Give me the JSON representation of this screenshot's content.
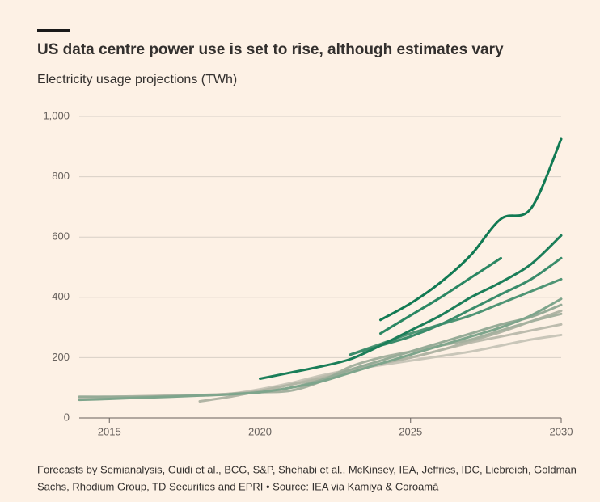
{
  "chart_data": {
    "type": "line",
    "title": "US data centre power use is set to rise, although estimates vary",
    "subtitle": "Electricity usage projections (TWh)",
    "footnote": [
      "Forecasts by Semianalysis, Guidi et al., BCG, S&P, Shehabi et al., McKinsey, IEA, Jeffries, IDC, Liebreich, Goldman",
      "Sachs, Rhodium Group, TD Securities and EPRI • Source: IEA via Kamiya & Coroamă"
    ],
    "x": [
      2014,
      2015,
      2016,
      2017,
      2018,
      2019,
      2020,
      2021,
      2022,
      2023,
      2024,
      2025,
      2026,
      2027,
      2028,
      2029,
      2030
    ],
    "xlim": [
      2014,
      2030
    ],
    "xticks": [
      2015,
      2020,
      2025,
      2030
    ],
    "ylim": [
      0,
      1000
    ],
    "yticks": [
      0,
      200,
      400,
      600,
      800,
      {
        "value": 1000,
        "label": "1,000"
      }
    ],
    "grid": true,
    "series": [
      {
        "color": "#c9c6b9",
        "values": [
          65,
          68,
          70,
          72,
          75,
          80,
          95,
          115,
          140,
          160,
          175,
          190,
          205,
          220,
          240,
          260,
          275
        ]
      },
      {
        "color": "#bdbcae",
        "values": [
          70,
          70,
          72,
          74,
          76,
          80,
          90,
          110,
          135,
          160,
          180,
          200,
          225,
          250,
          270,
          290,
          310
        ]
      },
      {
        "color": "#b1b5a5",
        "values": [
          null,
          null,
          null,
          null,
          55,
          70,
          90,
          110,
          130,
          155,
          180,
          200,
          225,
          255,
          285,
          320,
          355
        ]
      },
      {
        "color": "#a5b19f",
        "values": [
          null,
          null,
          null,
          null,
          null,
          80,
          85,
          90,
          120,
          170,
          200,
          220,
          240,
          260,
          290,
          320,
          345
        ]
      },
      {
        "color": "#96ab97",
        "values": [
          70,
          70,
          70,
          72,
          75,
          78,
          85,
          100,
          125,
          160,
          190,
          220,
          250,
          280,
          310,
          335,
          375
        ]
      },
      {
        "color": "#7ea58c",
        "values": [
          60,
          63,
          67,
          70,
          74,
          78,
          85,
          100,
          120,
          150,
          180,
          210,
          240,
          270,
          300,
          340,
          395
        ]
      },
      {
        "color": "#4f9575",
        "values": [
          null,
          null,
          null,
          null,
          null,
          null,
          null,
          null,
          null,
          210,
          245,
          280,
          310,
          340,
          380,
          420,
          460
        ]
      },
      {
        "color": "#3a8c6b",
        "values": [
          null,
          null,
          null,
          null,
          null,
          null,
          null,
          null,
          null,
          210,
          240,
          270,
          310,
          360,
          410,
          460,
          530
        ]
      },
      {
        "color": "#2b8763",
        "values": [
          null,
          null,
          null,
          null,
          null,
          null,
          null,
          null,
          null,
          null,
          280,
          340,
          400,
          465,
          530,
          null,
          null
        ]
      },
      {
        "color": "#1b7e59",
        "values": [
          null,
          null,
          null,
          null,
          null,
          null,
          130,
          150,
          170,
          195,
          240,
          290,
          340,
          400,
          450,
          510,
          605
        ]
      },
      {
        "color": "#117a53",
        "values": [
          null,
          null,
          null,
          null,
          null,
          null,
          null,
          null,
          null,
          null,
          325,
          380,
          450,
          540,
          660,
          695,
          925
        ]
      }
    ]
  }
}
